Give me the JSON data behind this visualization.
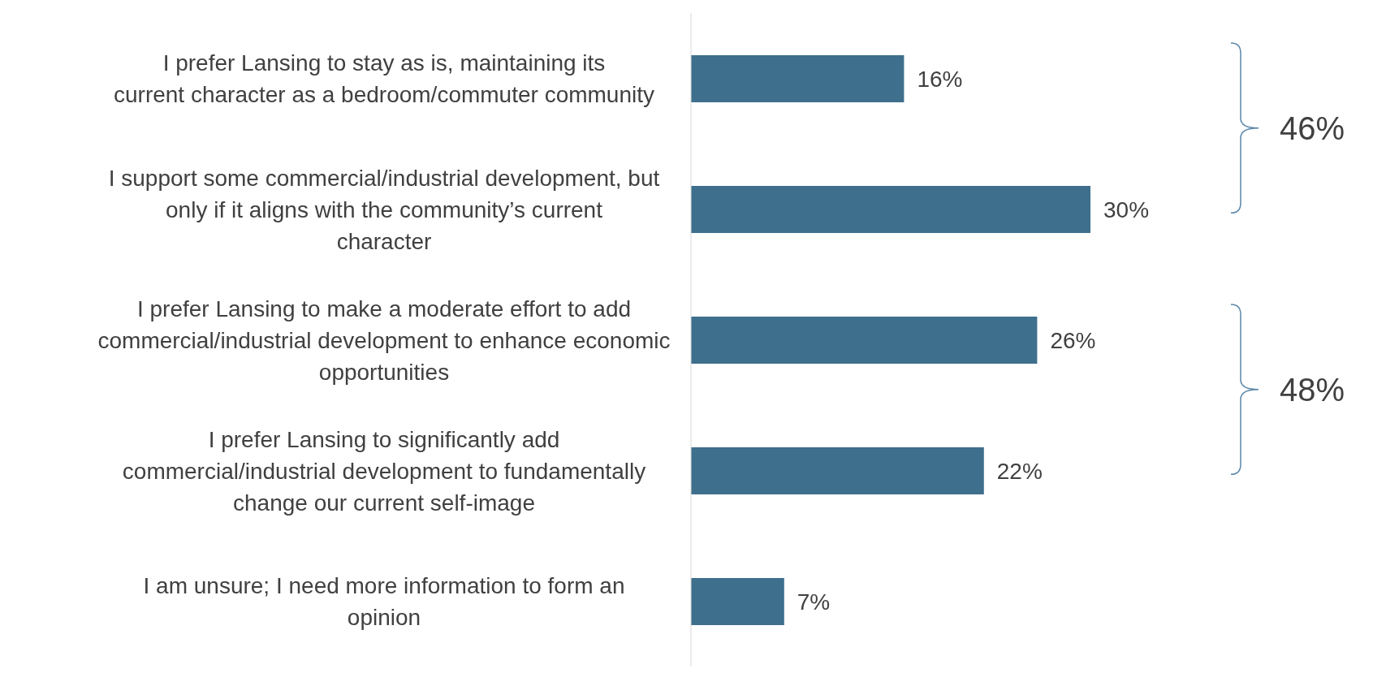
{
  "chart_data": {
    "type": "bar",
    "orientation": "horizontal",
    "categories": [
      "I prefer Lansing to stay as is, maintaining its current character as a bedroom/commuter community",
      "I support some commercial/industrial development, but only if it aligns with the community’s current character",
      "I prefer Lansing to make a moderate effort to add commercial/industrial development to enhance economic opportunities",
      "I prefer Lansing to significantly add commercial/industrial development to fundamentally change our current self-image",
      "I am unsure; I need more information to form an opinion"
    ],
    "values": [
      16,
      30,
      26,
      22,
      7
    ],
    "value_labels": [
      "16%",
      "30%",
      "26%",
      "22%",
      "7%"
    ],
    "color": "#3e6f8d",
    "tick_labels": "y",
    "annotations": [
      "46%",
      "48%"
    ]
  }
}
